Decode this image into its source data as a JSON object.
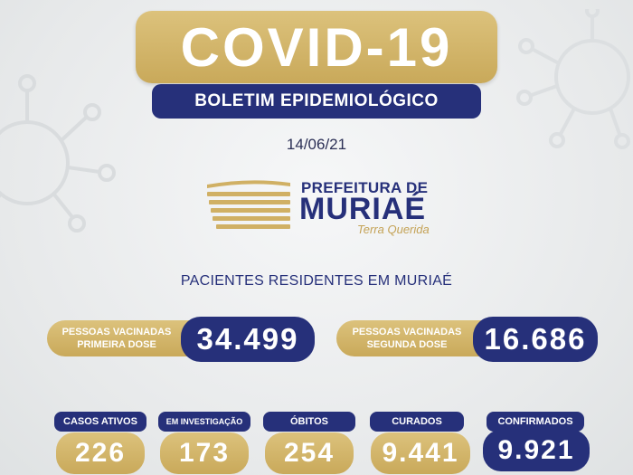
{
  "header": {
    "title": "COVID-19",
    "subtitle": "BOLETIM EPIDEMIOLÓGICO",
    "date": "14/06/21"
  },
  "logo": {
    "line1": "PREFEITURA DE",
    "line2": "MURIAÉ",
    "tagline": "Terra Querida"
  },
  "section_title": "PACIENTES RESIDENTES EM MURIAÉ",
  "vaccinated": {
    "first_dose": {
      "label_line1": "PESSOAS VACINADAS",
      "label_line2": "PRIMEIRA DOSE",
      "value": "34.499"
    },
    "second_dose": {
      "label_line1": "PESSOAS VACINADAS",
      "label_line2": "SEGUNDA DOSE",
      "value": "16.686"
    }
  },
  "stats": [
    {
      "label": "CASOS ATIVOS",
      "value": "226"
    },
    {
      "label": "EM INVESTIGAÇÃO",
      "value": "173"
    },
    {
      "label": "ÓBITOS",
      "value": "254"
    },
    {
      "label": "CURADOS",
      "value": "9.441"
    },
    {
      "label": "CONFIRMADOS",
      "value": "9.921"
    }
  ],
  "colors": {
    "gold": "#c9a95a",
    "navy": "#26307a",
    "background": "#eceeef"
  }
}
